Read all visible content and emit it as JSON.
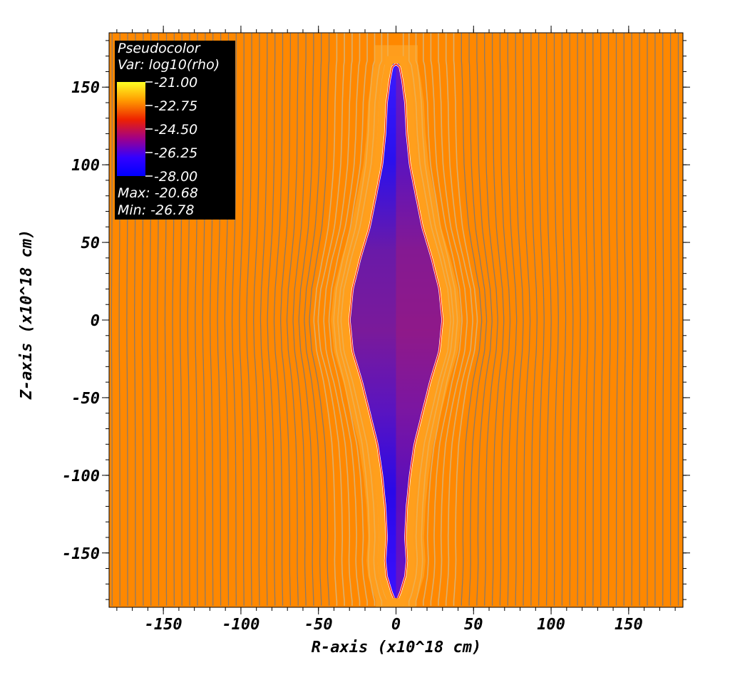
{
  "chart_data": {
    "type": "heatmap",
    "plot_kind": "pseudocolor",
    "xlabel": "R-axis (x10^18 cm)",
    "ylabel": "Z-axis (x10^18 cm)",
    "xlim": [
      -185,
      185
    ],
    "ylim": [
      -185,
      185
    ],
    "x_ticks": [
      -150,
      -100,
      -50,
      0,
      50,
      100,
      150
    ],
    "y_ticks": [
      150,
      100,
      50,
      0,
      -50,
      -100,
      -150
    ],
    "background_color": "#ff8800",
    "field_line_spacing": 5,
    "legend": {
      "placement": "top-left",
      "title": "Pseudocolor",
      "variable": "Var: log10(rho)",
      "colorbar_ticks": [
        "-21.00",
        "-22.75",
        "-24.50",
        "-26.25",
        "-28.00"
      ],
      "colorbar_stops": [
        "#ffff22",
        "#ff9900",
        "#ee2200",
        "#a00088",
        "#3300ff",
        "#0000ff"
      ],
      "max_label": "Max: -20.68",
      "min_label": "Min: -26.78"
    },
    "cavity": {
      "profile": [
        {
          "z": 165,
          "r": 2
        },
        {
          "z": 155,
          "r": 4
        },
        {
          "z": 140,
          "r": 6
        },
        {
          "z": 120,
          "r": 7
        },
        {
          "z": 100,
          "r": 9
        },
        {
          "z": 80,
          "r": 13
        },
        {
          "z": 60,
          "r": 17
        },
        {
          "z": 40,
          "r": 23
        },
        {
          "z": 20,
          "r": 28
        },
        {
          "z": 0,
          "r": 30
        },
        {
          "z": -20,
          "r": 28
        },
        {
          "z": -40,
          "r": 22
        },
        {
          "z": -60,
          "r": 17
        },
        {
          "z": -80,
          "r": 12
        },
        {
          "z": -100,
          "r": 9
        },
        {
          "z": -120,
          "r": 7
        },
        {
          "z": -140,
          "r": 6
        },
        {
          "z": -155,
          "r": 7
        },
        {
          "z": -165,
          "r": 6
        },
        {
          "z": -175,
          "r": 3
        },
        {
          "z": -180,
          "r": 1
        }
      ]
    }
  }
}
